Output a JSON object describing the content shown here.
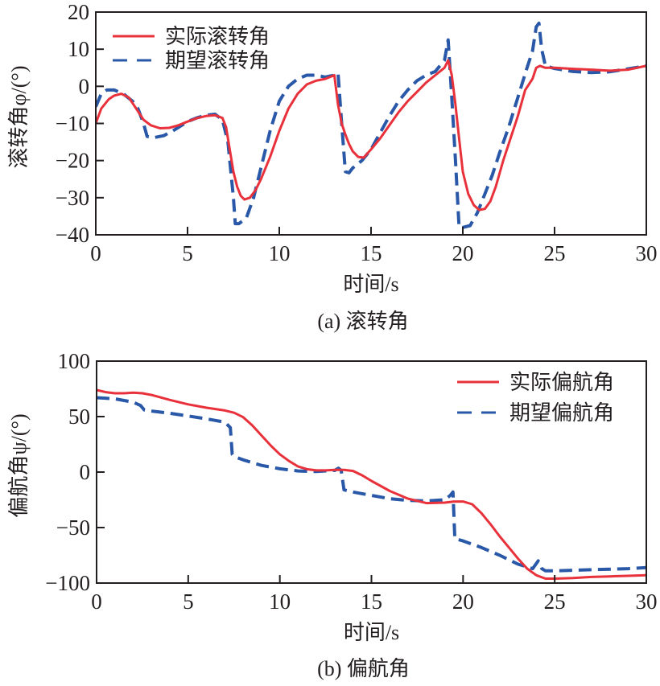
{
  "colors": {
    "actual": "#e8313a",
    "desired": "#2a58a8",
    "axis": "#231f20"
  },
  "chart_data": [
    {
      "type": "line",
      "caption": "(a) 滚转角",
      "xlabel": "时间/s",
      "ylabel": "滚转角φ/(°)",
      "xlim": [
        0,
        30
      ],
      "ylim": [
        -40,
        20
      ],
      "xticks": [
        0,
        5,
        10,
        15,
        20,
        25,
        30
      ],
      "yticks": [
        -40,
        -30,
        -20,
        -10,
        0,
        10,
        20
      ],
      "xtick_labels": [
        "0",
        "5",
        "10",
        "15",
        "20",
        "25",
        "30"
      ],
      "ytick_labels": [
        "−40",
        "−30",
        "−20",
        "−10",
        "0",
        "10",
        "20"
      ],
      "grid": false,
      "legend_position": "top-left",
      "series": [
        {
          "name": "实际滚转角",
          "style": "solid",
          "x": [
            0,
            0.3,
            0.7,
            1.0,
            1.4,
            1.8,
            2.2,
            2.6,
            3.0,
            3.5,
            4.0,
            4.5,
            5.0,
            5.5,
            6.0,
            6.5,
            6.9,
            7.1,
            7.3,
            7.5,
            7.7,
            7.9,
            8.1,
            8.4,
            8.7,
            9.0,
            9.5,
            10.0,
            10.5,
            11.0,
            11.5,
            12.0,
            12.5,
            13.0,
            13.2,
            13.4,
            13.6,
            13.8,
            14.0,
            14.3,
            14.6,
            15.0,
            15.5,
            16.0,
            16.5,
            17.0,
            17.5,
            18.0,
            18.5,
            19.0,
            19.2,
            19.4,
            19.6,
            19.8,
            20.0,
            20.3,
            20.6,
            20.9,
            21.2,
            21.5,
            21.8,
            22.2,
            22.6,
            23.0,
            23.4,
            23.8,
            24.0,
            24.2,
            24.5,
            25.0,
            26.0,
            27.0,
            28.0,
            29.0,
            30.0
          ],
          "y": [
            -10,
            -6,
            -3.5,
            -2.5,
            -2,
            -3,
            -6,
            -9,
            -10.5,
            -11.3,
            -11.2,
            -10.5,
            -9.5,
            -8.6,
            -8,
            -7.8,
            -8.5,
            -11,
            -17,
            -23,
            -27,
            -29.5,
            -30.5,
            -30,
            -28,
            -25,
            -19,
            -12,
            -6,
            -2,
            0.5,
            1.5,
            2,
            3,
            -5,
            -10,
            -13,
            -15.5,
            -17.5,
            -19,
            -19.2,
            -17,
            -14,
            -10.5,
            -7,
            -4,
            -1.5,
            1,
            3,
            5,
            7,
            3,
            -5,
            -14,
            -23,
            -29,
            -32,
            -33.3,
            -33,
            -31,
            -27,
            -20,
            -14,
            -8,
            -1,
            2,
            5,
            5.5,
            5,
            5,
            4.7,
            4.5,
            4.2,
            4.5,
            5.5
          ]
        },
        {
          "name": "期望滚转角",
          "style": "dashed",
          "x": [
            0,
            0.3,
            0.6,
            1.0,
            1.5,
            2.0,
            2.3,
            2.6,
            2.8,
            3.2,
            3.7,
            4.2,
            5.0,
            5.5,
            6.0,
            6.5,
            6.9,
            7.2,
            7.5,
            7.6,
            7.8,
            8.2,
            8.6,
            9.0,
            9.5,
            10.0,
            10.5,
            11.0,
            11.5,
            12.0,
            12.5,
            13.0,
            13.2,
            13.4,
            13.6,
            13.8,
            14.0,
            14.5,
            15.0,
            15.5,
            16.0,
            16.5,
            17.0,
            17.5,
            18.0,
            18.5,
            19.0,
            19.2,
            19.4,
            19.6,
            19.8,
            20.0,
            20.4,
            20.8,
            21.2,
            21.6,
            22.0,
            22.5,
            23.0,
            23.5,
            23.8,
            24.0,
            24.15,
            24.3,
            24.5,
            25.0,
            26.0,
            27.0,
            28.0,
            29.0,
            30.0
          ],
          "y": [
            -5.5,
            -2,
            -1,
            -1,
            -2,
            -4,
            -6,
            -10,
            -13.5,
            -13.8,
            -13.3,
            -12,
            -9.5,
            -8.5,
            -7.8,
            -7.5,
            -9,
            -15,
            -30,
            -37,
            -37,
            -35.5,
            -30,
            -22,
            -12,
            -4,
            0,
            2,
            3,
            3,
            2.5,
            3,
            3.5,
            -10,
            -23,
            -23.3,
            -22,
            -20,
            -17,
            -12.5,
            -8,
            -4,
            -1,
            1.5,
            3,
            4,
            7,
            12.5,
            -3,
            -20,
            -38,
            -38,
            -37.5,
            -34,
            -29,
            -24,
            -18,
            -11,
            -3,
            5,
            9.5,
            16,
            17,
            10,
            5.5,
            4.8,
            4,
            3.7,
            3.9,
            4.7,
            5.5
          ]
        }
      ]
    },
    {
      "type": "line",
      "caption": "(b) 偏航角",
      "xlabel": "时间/s",
      "ylabel": "偏航角ψ/(°)",
      "xlim": [
        0,
        30
      ],
      "ylim": [
        -100,
        100
      ],
      "xticks": [
        0,
        5,
        10,
        15,
        20,
        25,
        30
      ],
      "yticks": [
        -100,
        -50,
        0,
        50,
        100
      ],
      "xtick_labels": [
        "0",
        "5",
        "10",
        "15",
        "20",
        "25",
        "30"
      ],
      "ytick_labels": [
        "−100",
        "−50",
        "0",
        "50",
        "100"
      ],
      "grid": false,
      "legend_position": "top-right",
      "series": [
        {
          "name": "实际偏航角",
          "style": "solid",
          "x": [
            0,
            0.5,
            1.0,
            1.5,
            2.0,
            2.5,
            3.0,
            4.0,
            5.0,
            6.0,
            7.0,
            7.5,
            8.0,
            8.5,
            9.0,
            9.5,
            10.0,
            10.5,
            11.0,
            11.5,
            12.0,
            12.5,
            13.0,
            13.5,
            14.0,
            14.5,
            15.0,
            16.0,
            17.0,
            18.0,
            19.0,
            19.5,
            20.0,
            20.5,
            21.0,
            21.5,
            22.0,
            22.5,
            23.0,
            23.5,
            24.0,
            24.5,
            25.0,
            26.0,
            27.0,
            28.0,
            29.0,
            30.0
          ],
          "y": [
            74,
            72,
            71,
            71,
            71.5,
            71,
            69.5,
            65,
            61,
            58,
            55.5,
            53.5,
            49.5,
            42,
            33,
            24,
            16,
            10,
            5,
            2.5,
            1.5,
            1.5,
            2,
            2,
            1,
            -3,
            -8,
            -17,
            -24,
            -28,
            -27.5,
            -26.5,
            -26.5,
            -29,
            -37,
            -47,
            -58,
            -68,
            -78,
            -87,
            -93,
            -96,
            -96,
            -95.5,
            -94.5,
            -94,
            -93.5,
            -93
          ]
        },
        {
          "name": "期望偏航角",
          "style": "dashed",
          "x": [
            0,
            1.0,
            2.0,
            2.4,
            2.6,
            3.0,
            4.0,
            5.0,
            6.0,
            7.0,
            7.3,
            7.4,
            7.5,
            8.0,
            9.0,
            10.0,
            11.0,
            12.0,
            13.0,
            13.2,
            13.35,
            13.5,
            14.0,
            15.0,
            16.0,
            17.0,
            18.0,
            19.0,
            19.3,
            19.45,
            19.55,
            20.0,
            21.0,
            22.0,
            23.0,
            23.8,
            24.1,
            24.3,
            24.5,
            25.0,
            26.0,
            27.0,
            28.0,
            29.0,
            30.0
          ],
          "y": [
            67,
            66,
            63,
            60,
            56,
            55,
            53,
            50.5,
            48,
            45,
            40,
            16,
            14,
            11,
            6,
            3,
            1,
            0.5,
            1.5,
            3.5,
            1.5,
            -16,
            -18,
            -21,
            -24,
            -25.5,
            -26,
            -25,
            -21,
            -18,
            -60,
            -62,
            -68,
            -75,
            -83,
            -87,
            -80,
            -87,
            -89,
            -89,
            -88.5,
            -88,
            -87.5,
            -87,
            -86
          ]
        }
      ]
    }
  ]
}
